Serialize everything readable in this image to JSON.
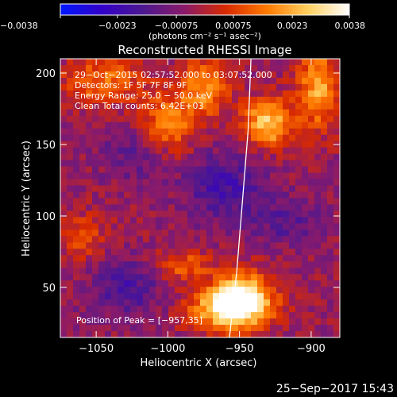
{
  "chart_data": {
    "type": "heatmap",
    "title": "Reconstructed RHESSI Image",
    "xlabel": "Heliocentric X (arcsec)",
    "ylabel": "Heliocentric Y (arcsec)",
    "xlim": [
      -1075,
      -880
    ],
    "ylim": [
      15,
      210
    ],
    "xticks": [
      -1050,
      -1000,
      -950,
      -900
    ],
    "xtick_labels": [
      "−1050",
      "−1000",
      "−950",
      "−900"
    ],
    "yticks": [
      50,
      100,
      150,
      200
    ],
    "ytick_labels": [
      "50",
      "100",
      "150",
      "200"
    ],
    "colorbar": {
      "range": [
        -0.0038,
        0.0038
      ],
      "ticks": [
        -0.0038,
        -0.0023,
        -0.00075,
        0.00075,
        0.0023,
        0.0038
      ],
      "tick_labels": [
        "−0.0038",
        "−0.0023",
        "−0.00075",
        "0.00075",
        "0.0023",
        "0.0038"
      ],
      "units_label": "(photons cm⁻² s⁻¹ asec⁻²)",
      "colors": [
        "#0018ff",
        "#3200c8",
        "#4c1890",
        "#8a1a6a",
        "#d82a00",
        "#ff7a00",
        "#ffd060",
        "#ffffff"
      ]
    },
    "annotations": [
      "29−Oct−2015 02:57:52.000 to 03:07:52.000",
      "Detectors: 1F 5F 7F 8F 9F",
      "Energy Range: 25.0 − 50.0 keV",
      "Clean      Total counts: 6.42E+03"
    ],
    "peak_label": "Position of Peak = [−957,35]",
    "peak_position": [
      -957,
      35
    ],
    "limb_curve": [
      [
        -957,
        15
      ],
      [
        -952,
        60
      ],
      [
        -948,
        110
      ],
      [
        -944,
        160
      ],
      [
        -942,
        210
      ]
    ],
    "blobs": [
      {
        "x": -957,
        "y": 35,
        "value": 0.0038,
        "sx": 18,
        "sy": 10
      },
      {
        "x": -948,
        "y": 45,
        "value": 0.003,
        "sx": 14,
        "sy": 12
      },
      {
        "x": -930,
        "y": 165,
        "value": 0.0032,
        "sx": 12,
        "sy": 12
      },
      {
        "x": -1045,
        "y": 195,
        "value": 0.0018,
        "sx": 20,
        "sy": 12
      },
      {
        "x": -1000,
        "y": 165,
        "value": 0.002,
        "sx": 14,
        "sy": 14
      },
      {
        "x": -975,
        "y": 190,
        "value": 0.0022,
        "sx": 12,
        "sy": 14
      },
      {
        "x": -895,
        "y": 190,
        "value": 0.0026,
        "sx": 10,
        "sy": 20
      },
      {
        "x": -990,
        "y": 65,
        "value": 0.0016,
        "sx": 14,
        "sy": 8
      },
      {
        "x": -1060,
        "y": 85,
        "value": 0.0012,
        "sx": 12,
        "sy": 12
      },
      {
        "x": -960,
        "y": 120,
        "value": -0.0015,
        "sx": 20,
        "sy": 18
      },
      {
        "x": -1030,
        "y": 50,
        "value": -0.0014,
        "sx": 18,
        "sy": 14
      },
      {
        "x": -915,
        "y": 95,
        "value": -0.001,
        "sx": 16,
        "sy": 12
      },
      {
        "x": -1025,
        "y": 145,
        "value": -0.001,
        "sx": 14,
        "sy": 14
      }
    ]
  },
  "footer": {
    "timestamp": "25−Sep−2017 15:43"
  }
}
